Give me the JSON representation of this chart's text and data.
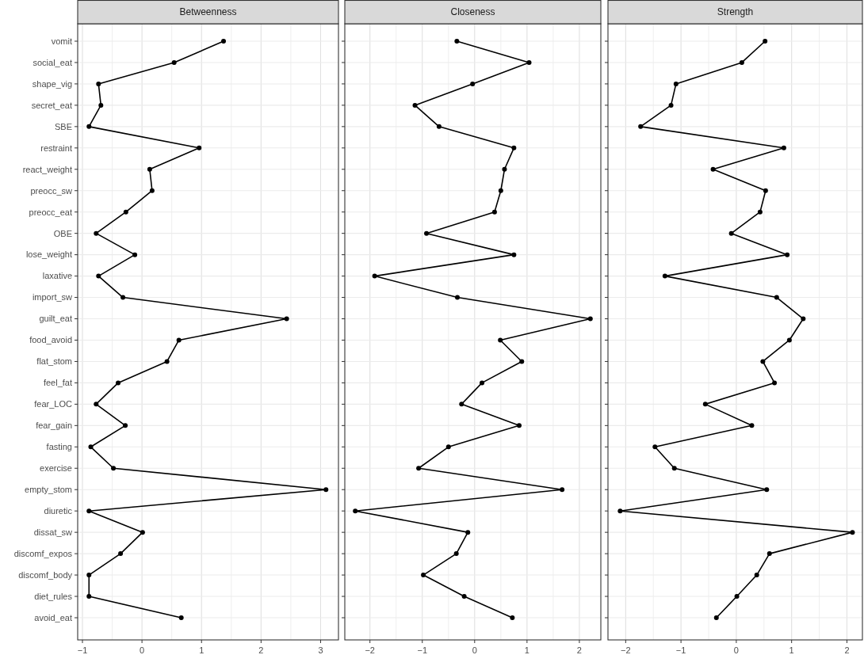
{
  "chart_data": [
    {
      "type": "line",
      "orientation": "horizontal",
      "title": "Betweenness",
      "color": "#000000",
      "marker": "circle",
      "grid": true,
      "categories": [
        "vomit",
        "social_eat",
        "shape_vig",
        "secret_eat",
        "SBE",
        "restraint",
        "react_weight",
        "preocc_sw",
        "preocc_eat",
        "OBE",
        "lose_weight",
        "laxative",
        "import_sw",
        "guilt_eat",
        "food_avoid",
        "flat_stom",
        "feel_fat",
        "fear_LOC",
        "fear_gain",
        "fasting",
        "exercise",
        "empty_stom",
        "diuretic",
        "dissat_sw",
        "discomf_expos",
        "discomf_body",
        "diet_rules",
        "avoid_eat"
      ],
      "values": [
        1.37,
        0.54,
        -0.73,
        -0.69,
        -0.89,
        0.96,
        0.13,
        0.17,
        -0.27,
        -0.77,
        -0.12,
        -0.73,
        -0.32,
        2.43,
        0.62,
        0.42,
        -0.4,
        -0.77,
        -0.28,
        -0.86,
        -0.48,
        3.09,
        -0.89,
        0.01,
        -0.36,
        -0.89,
        -0.89,
        0.66
      ],
      "xlim": [
        -1.08,
        3.3
      ],
      "xticks": [
        -1,
        {
          "value": -0.5,
          "label": null
        },
        0,
        {
          "value": 0.5,
          "label": null
        },
        1,
        {
          "value": 1.5,
          "label": null
        },
        2,
        {
          "value": 2.5,
          "label": null
        },
        3
      ]
    },
    {
      "type": "line",
      "orientation": "horizontal",
      "title": "Closeness",
      "color": "#000000",
      "marker": "circle",
      "grid": true,
      "categories": [
        null,
        null,
        null,
        null,
        null,
        null,
        null,
        null,
        null,
        null,
        null,
        null,
        null,
        null,
        null,
        null,
        null,
        null,
        null,
        null,
        null,
        null,
        null,
        null,
        null,
        null,
        null,
        null
      ],
      "values": [
        -0.34,
        1.04,
        -0.04,
        -1.14,
        -0.68,
        0.75,
        0.57,
        0.5,
        0.38,
        -0.92,
        0.75,
        -1.91,
        -0.33,
        2.21,
        0.49,
        0.9,
        0.14,
        -0.25,
        0.85,
        -0.5,
        -1.07,
        1.67,
        -2.28,
        -0.13,
        -0.35,
        -0.98,
        -0.2,
        0.72
      ],
      "xlim": [
        -2.48,
        2.41
      ],
      "xticks": [
        -2,
        {
          "value": -1.5,
          "label": null
        },
        -1,
        {
          "value": -0.5,
          "label": null
        },
        0,
        {
          "value": 0.5,
          "label": null
        },
        1,
        {
          "value": 1.5,
          "label": null
        },
        2
      ]
    },
    {
      "type": "line",
      "orientation": "horizontal",
      "title": "Strength",
      "color": "#000000",
      "marker": "circle",
      "grid": true,
      "categories": [
        null,
        null,
        null,
        null,
        null,
        null,
        null,
        null,
        null,
        null,
        null,
        null,
        null,
        null,
        null,
        null,
        null,
        null,
        null,
        null,
        null,
        null,
        null,
        null,
        null,
        null,
        null,
        null
      ],
      "values": [
        0.52,
        0.1,
        -1.09,
        -1.18,
        -1.73,
        0.86,
        -0.42,
        0.53,
        0.43,
        -0.09,
        0.92,
        -1.29,
        0.73,
        1.21,
        0.96,
        0.48,
        0.69,
        -0.56,
        0.28,
        -1.47,
        -1.12,
        0.55,
        -2.1,
        2.1,
        0.6,
        0.37,
        0.01,
        -0.36
      ],
      "xlim": [
        -2.32,
        2.28
      ],
      "xticks": [
        -2,
        {
          "value": -1.5,
          "label": null
        },
        -1,
        {
          "value": -0.5,
          "label": null
        },
        0,
        {
          "value": 0.5,
          "label": null
        },
        1,
        {
          "value": 1.5,
          "label": null
        },
        2
      ]
    }
  ]
}
